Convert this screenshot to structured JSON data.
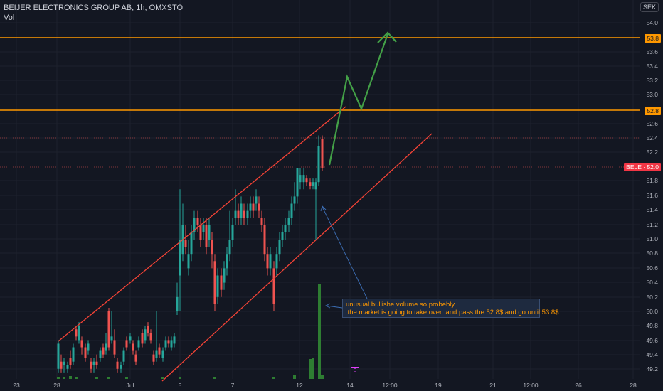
{
  "header": {
    "symbol": "BEIJER ELECTRONICS GROUP AB, 1h, OMXSTO",
    "volume_label": "Vol",
    "currency": "SEK"
  },
  "price_axis": {
    "ticks": [
      "54.0",
      "53.6",
      "53.4",
      "53.2",
      "53.0",
      "52.6",
      "52.4",
      "52.2",
      "51.8",
      "51.6",
      "51.4",
      "51.2",
      "51.0",
      "50.8",
      "50.6",
      "50.4",
      "50.2",
      "50.0",
      "49.8",
      "49.6",
      "49.4",
      "49.2"
    ],
    "level_labels": [
      "53.8",
      "52.8"
    ],
    "last_label": "BELE · 52.0"
  },
  "time_axis": {
    "ticks": [
      "23",
      "28",
      "Jul",
      "5",
      "7",
      "12",
      "14",
      "12:00",
      "19",
      "21",
      "12:00",
      "26",
      "28"
    ]
  },
  "annotation": {
    "line1": "unusual bullishe volume so probebly",
    "line2": " the market is going to take over  and pass the 52.8$ and go until 53.8$"
  },
  "event_marker": "E",
  "colors": {
    "background": "#131722",
    "up": "#26a69a",
    "down": "#ef5350",
    "levels": "#ff9800",
    "channel": "#f44336",
    "projection": "#43a047",
    "volume": "#2e7d32"
  },
  "chart_data": {
    "type": "candlestick",
    "ylim": [
      49.1,
      54.1
    ],
    "horizontal_levels": [
      53.8,
      52.8
    ],
    "last_price": 52.0
  }
}
